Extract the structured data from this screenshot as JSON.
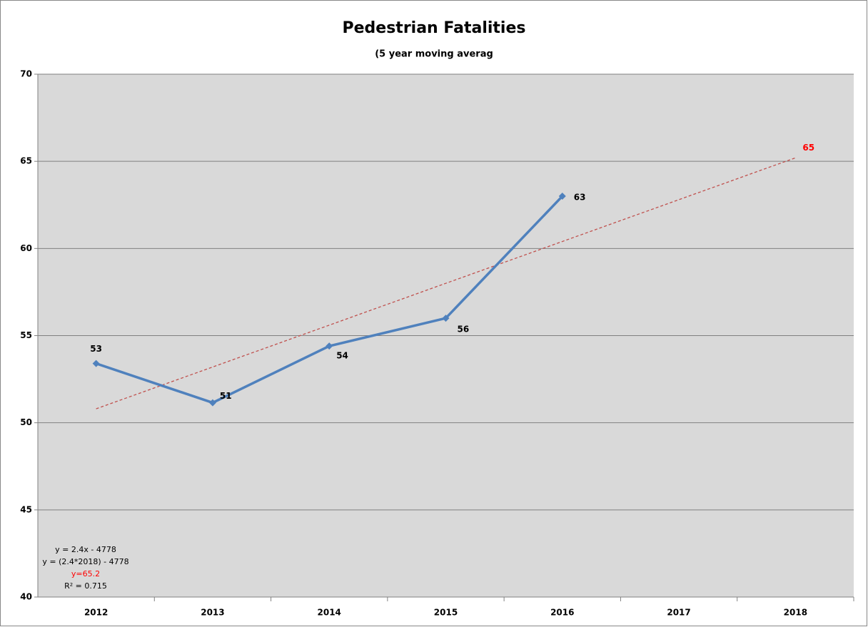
{
  "chart_data": {
    "type": "line",
    "title": "Pedestrian Fatalities",
    "subtitle": "(5 year moving averag",
    "categories": [
      "2012",
      "2013",
      "2014",
      "2015",
      "2016",
      "2017",
      "2018"
    ],
    "series": [
      {
        "color": "#4f81bd",
        "values": [
          53.4,
          51.15,
          54.4,
          56.0,
          63.0,
          null,
          null
        ],
        "value_labels": [
          "53",
          "51",
          "54",
          "56",
          "63",
          null,
          null
        ]
      }
    ],
    "trendline": {
      "color": "#c0504d",
      "values": [
        50.8,
        53.2,
        55.6,
        58.0,
        60.4,
        62.8,
        65.2
      ],
      "value_labels": [
        null,
        null,
        null,
        null,
        null,
        null,
        "65"
      ]
    },
    "annotations": [
      {
        "text": "y = 2.4x - 4778",
        "color": "#000000"
      },
      {
        "text": "y = (2.4*2018) - 4778",
        "color": "#000000"
      },
      {
        "text": "y=65.2",
        "color": "#ff0000"
      },
      {
        "text": "R² = 0.715",
        "color": "#000000"
      }
    ],
    "ylim": [
      40,
      70
    ],
    "yticks": [
      40,
      45,
      50,
      55,
      60,
      65,
      70
    ],
    "grid": true
  }
}
